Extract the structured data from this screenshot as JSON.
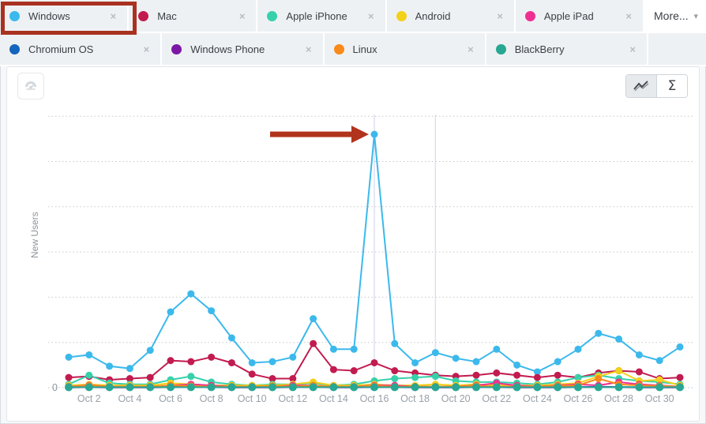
{
  "filter_chips": {
    "more_label": "More...",
    "remove_symbol": "×",
    "rows": [
      [
        {
          "label": "Windows",
          "color": "#3cb9ec",
          "highlighted": true
        },
        {
          "label": "Mac",
          "color": "#c21b4f",
          "highlighted": false
        },
        {
          "label": "Apple iPhone",
          "color": "#36d1ab",
          "highlighted": false
        },
        {
          "label": "Android",
          "color": "#f2d118",
          "highlighted": false
        },
        {
          "label": "Apple iPad",
          "color": "#ef2f92",
          "highlighted": false
        }
      ],
      [
        {
          "label": "Chromium OS",
          "color": "#1465bd",
          "highlighted": false
        },
        {
          "label": "Windows Phone",
          "color": "#7c16a5",
          "highlighted": false
        },
        {
          "label": "Linux",
          "color": "#f8891a",
          "highlighted": false
        },
        {
          "label": "BlackBerry",
          "color": "#28a793",
          "highlighted": false
        }
      ]
    ]
  },
  "toolbar": {
    "dashboard_button_icon": "dashboard-gauge",
    "view_toggle": {
      "selected": "line",
      "sum_symbol": "Σ"
    }
  },
  "chart_data": {
    "type": "line",
    "title": "",
    "xlabel": "",
    "ylabel": "New Users",
    "y_axis": {
      "label": "New Users",
      "baseline_label": "0",
      "ylim": [
        0,
        1220
      ],
      "gridline_step": 200,
      "gridline_style": "dotted"
    },
    "x_ticks": [
      {
        "day": 2,
        "label": "Oct 2"
      },
      {
        "day": 4,
        "label": "Oct 4"
      },
      {
        "day": 6,
        "label": "Oct 6"
      },
      {
        "day": 8,
        "label": "Oct 8"
      },
      {
        "day": 10,
        "label": "Oct 10"
      },
      {
        "day": 12,
        "label": "Oct 12"
      },
      {
        "day": 14,
        "label": "Oct 14"
      },
      {
        "day": 16,
        "label": "Oct 16"
      },
      {
        "day": 18,
        "label": "Oct 18"
      },
      {
        "day": 20,
        "label": "Oct 20"
      },
      {
        "day": 22,
        "label": "Oct 22"
      },
      {
        "day": 24,
        "label": "Oct 24"
      },
      {
        "day": 26,
        "label": "Oct 26"
      },
      {
        "day": 28,
        "label": "Oct 28"
      },
      {
        "day": 30,
        "label": "Oct 30"
      }
    ],
    "days": 31,
    "series": [
      {
        "name": "Windows",
        "color": "#3cb9ec",
        "values": [
          135,
          145,
          95,
          85,
          165,
          335,
          415,
          340,
          220,
          110,
          115,
          135,
          305,
          170,
          170,
          1120,
          195,
          110,
          155,
          130,
          115,
          170,
          100,
          70,
          115,
          170,
          240,
          215,
          145,
          120,
          180
        ]
      },
      {
        "name": "Mac",
        "color": "#c21b4f",
        "values": [
          45,
          50,
          35,
          40,
          45,
          120,
          115,
          135,
          110,
          60,
          40,
          40,
          195,
          80,
          75,
          110,
          75,
          65,
          55,
          50,
          55,
          65,
          55,
          45,
          55,
          45,
          65,
          75,
          70,
          40,
          45
        ]
      },
      {
        "name": "Apple iPhone",
        "color": "#36d1ab",
        "values": [
          15,
          55,
          20,
          15,
          15,
          35,
          50,
          25,
          15,
          10,
          15,
          15,
          20,
          10,
          15,
          30,
          40,
          45,
          50,
          30,
          25,
          25,
          20,
          15,
          25,
          45,
          55,
          40,
          30,
          25,
          15
        ]
      },
      {
        "name": "Android",
        "color": "#f2d118",
        "values": [
          10,
          15,
          10,
          10,
          10,
          20,
          15,
          10,
          10,
          10,
          10,
          15,
          25,
          10,
          10,
          15,
          10,
          10,
          15,
          10,
          15,
          10,
          10,
          10,
          15,
          20,
          50,
          75,
          30,
          35,
          10
        ]
      },
      {
        "name": "Apple iPad",
        "color": "#ef2f92",
        "values": [
          5,
          10,
          5,
          5,
          5,
          10,
          15,
          10,
          5,
          5,
          5,
          10,
          10,
          5,
          5,
          10,
          10,
          5,
          5,
          5,
          10,
          20,
          10,
          5,
          10,
          15,
          10,
          25,
          15,
          10,
          5
        ]
      },
      {
        "name": "Chromium OS",
        "color": "#1465bd",
        "values": [
          2,
          3,
          2,
          2,
          2,
          3,
          4,
          3,
          2,
          2,
          2,
          3,
          5,
          2,
          2,
          4,
          3,
          2,
          2,
          2,
          3,
          3,
          2,
          2,
          2,
          3,
          4,
          3,
          2,
          2,
          2
        ]
      },
      {
        "name": "Windows Phone",
        "color": "#7c16a5",
        "values": [
          1,
          2,
          1,
          1,
          1,
          2,
          3,
          2,
          1,
          1,
          1,
          2,
          3,
          1,
          1,
          2,
          2,
          1,
          1,
          1,
          2,
          2,
          1,
          1,
          1,
          2,
          3,
          2,
          1,
          1,
          1
        ]
      },
      {
        "name": "Linux",
        "color": "#f8891a",
        "values": [
          5,
          8,
          5,
          5,
          5,
          10,
          8,
          5,
          5,
          5,
          8,
          5,
          10,
          5,
          5,
          8,
          5,
          5,
          5,
          5,
          8,
          5,
          5,
          5,
          8,
          10,
          40,
          15,
          10,
          8,
          5
        ]
      },
      {
        "name": "BlackBerry",
        "color": "#28a793",
        "values": [
          2,
          2,
          2,
          2,
          2,
          2,
          2,
          2,
          2,
          2,
          2,
          2,
          2,
          2,
          2,
          2,
          2,
          2,
          2,
          2,
          2,
          2,
          2,
          2,
          2,
          2,
          2,
          2,
          2,
          2,
          2
        ]
      }
    ],
    "annotations": {
      "arrow": {
        "day": 16,
        "value": 1120,
        "color": "#b2331c"
      },
      "vertical_line_days": [
        16,
        19
      ],
      "highlighted_series": "Windows"
    }
  }
}
